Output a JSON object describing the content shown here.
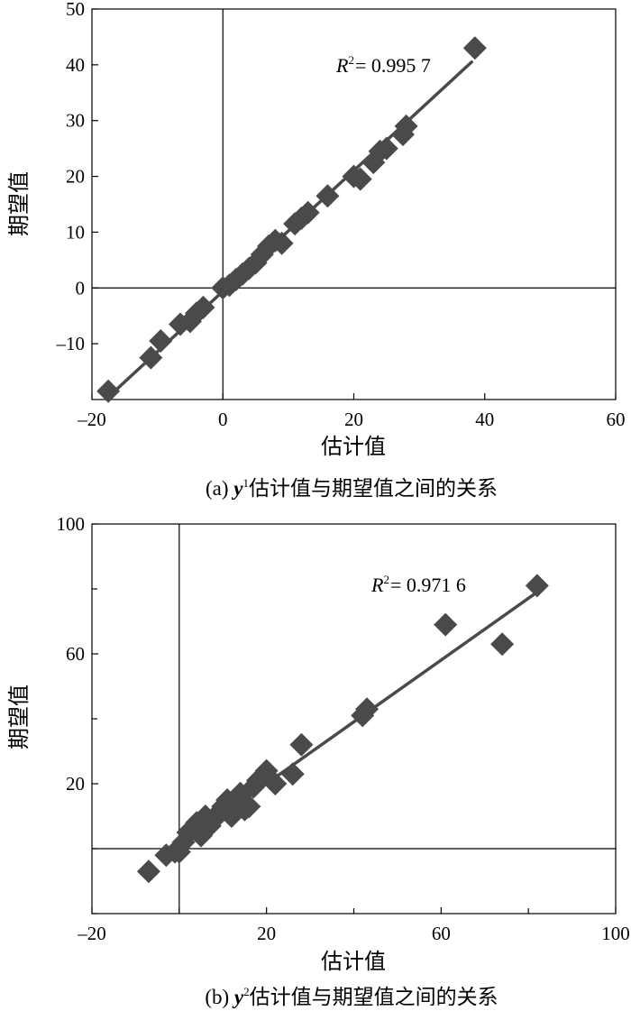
{
  "chart_data": [
    {
      "type": "scatter",
      "panel": "a",
      "caption_prefix": "(a) ",
      "caption_var": "y",
      "caption_sup": "1",
      "caption_rest": "估计值与期望值之间的关系",
      "xlabel": "估计值",
      "ylabel": "期望值",
      "xlim": [
        -20,
        60
      ],
      "ylim": [
        -20,
        50
      ],
      "xticks": [
        -20,
        0,
        20,
        40,
        60
      ],
      "xtick_labels": [
        "–20",
        "0",
        "20",
        "40",
        "60"
      ],
      "yticks": [
        -10,
        0,
        10,
        20,
        30,
        40,
        50
      ],
      "ytick_labels": [
        "–10",
        "0",
        "10",
        "20",
        "30",
        "40",
        "50"
      ],
      "annotation": {
        "r_letter": "R",
        "sup": "2",
        "rest": "= 0.995 7"
      },
      "marker_color": "#4a4a4a",
      "fit_line": {
        "x": [
          -17,
          38
        ],
        "y": [
          -19,
          40.5
        ]
      },
      "points": [
        {
          "x": -17.5,
          "y": -18.5
        },
        {
          "x": -11,
          "y": -12.5
        },
        {
          "x": -9.5,
          "y": -9.5
        },
        {
          "x": -6.5,
          "y": -6.5
        },
        {
          "x": -5,
          "y": -6
        },
        {
          "x": -4,
          "y": -4.5
        },
        {
          "x": -3,
          "y": -3.5
        },
        {
          "x": 0,
          "y": 0
        },
        {
          "x": 1,
          "y": 0.5
        },
        {
          "x": 2,
          "y": 1.5
        },
        {
          "x": 3,
          "y": 2.5
        },
        {
          "x": 4,
          "y": 3.5
        },
        {
          "x": 5,
          "y": 4.5
        },
        {
          "x": 6,
          "y": 6
        },
        {
          "x": 7,
          "y": 7.5
        },
        {
          "x": 8,
          "y": 8.5
        },
        {
          "x": 9,
          "y": 8
        },
        {
          "x": 11,
          "y": 11.5
        },
        {
          "x": 12,
          "y": 12.5
        },
        {
          "x": 13,
          "y": 13.5
        },
        {
          "x": 16,
          "y": 16.5
        },
        {
          "x": 20,
          "y": 20
        },
        {
          "x": 21,
          "y": 19.5
        },
        {
          "x": 23,
          "y": 22.5
        },
        {
          "x": 24,
          "y": 24.5
        },
        {
          "x": 25,
          "y": 25
        },
        {
          "x": 27.5,
          "y": 27.5
        },
        {
          "x": 28,
          "y": 29
        },
        {
          "x": 38.5,
          "y": 43
        }
      ]
    },
    {
      "type": "scatter",
      "panel": "b",
      "caption_prefix": "(b) ",
      "caption_var": "y",
      "caption_sup": "2",
      "caption_rest": "估计值与期望值之间的关系",
      "xlabel": "估计值",
      "ylabel": "期望值",
      "xlim": [
        -20,
        100
      ],
      "ylim": [
        -20,
        100
      ],
      "xticks": [
        -20,
        20,
        60,
        100
      ],
      "xtick_labels": [
        "–20",
        "20",
        "60",
        "100"
      ],
      "minor_xticks": [
        0,
        40,
        80
      ],
      "yticks": [
        20,
        60,
        100
      ],
      "ytick_labels": [
        "20",
        "60",
        "100"
      ],
      "minor_yticks": [
        -20,
        0,
        40,
        80
      ],
      "annotation": {
        "r_letter": "R",
        "sup": "2",
        "rest": "= 0.971 6"
      },
      "marker_color": "#4a4a4a",
      "fit_line": {
        "x": [
          0,
          82
        ],
        "y": [
          1,
          79
        ]
      },
      "points": [
        {
          "x": -7,
          "y": -7
        },
        {
          "x": -3,
          "y": -2
        },
        {
          "x": -1,
          "y": -1
        },
        {
          "x": 0,
          "y": -1
        },
        {
          "x": 1,
          "y": 2
        },
        {
          "x": 2,
          "y": 5
        },
        {
          "x": 3,
          "y": 6
        },
        {
          "x": 4,
          "y": 8
        },
        {
          "x": 5,
          "y": 4
        },
        {
          "x": 6,
          "y": 10
        },
        {
          "x": 7,
          "y": 7
        },
        {
          "x": 8,
          "y": 9
        },
        {
          "x": 9,
          "y": 11
        },
        {
          "x": 10,
          "y": 13
        },
        {
          "x": 11,
          "y": 15
        },
        {
          "x": 12,
          "y": 10
        },
        {
          "x": 13,
          "y": 14
        },
        {
          "x": 14,
          "y": 17
        },
        {
          "x": 15,
          "y": 12
        },
        {
          "x": 16,
          "y": 13
        },
        {
          "x": 17,
          "y": 19
        },
        {
          "x": 18,
          "y": 21
        },
        {
          "x": 20,
          "y": 24
        },
        {
          "x": 22,
          "y": 20
        },
        {
          "x": 26,
          "y": 23
        },
        {
          "x": 28,
          "y": 32
        },
        {
          "x": 42,
          "y": 41
        },
        {
          "x": 43,
          "y": 43
        },
        {
          "x": 61,
          "y": 69
        },
        {
          "x": 74,
          "y": 63
        },
        {
          "x": 82,
          "y": 81
        }
      ]
    }
  ]
}
